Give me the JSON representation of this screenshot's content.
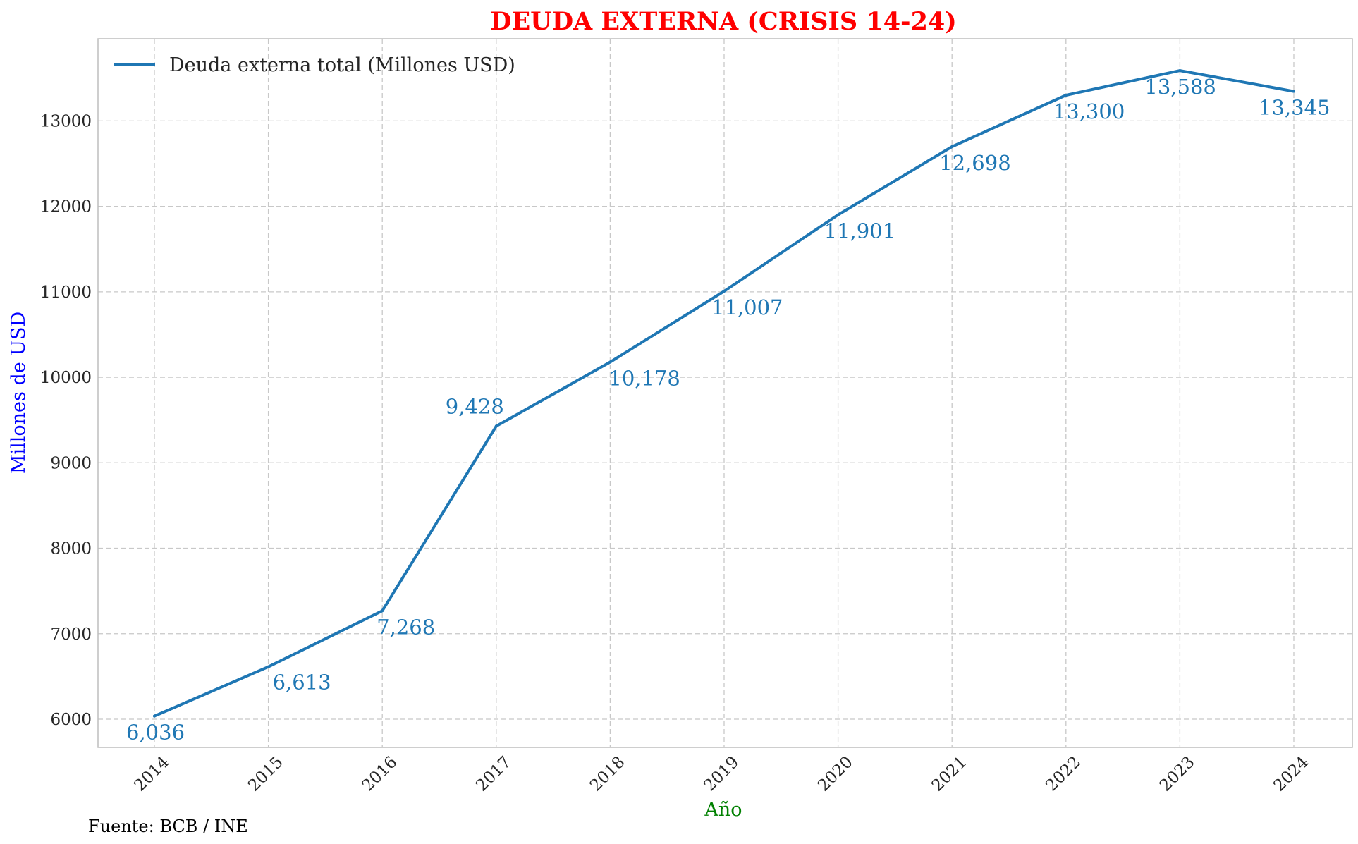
{
  "chart_data": {
    "type": "line",
    "title": "DEUDA EXTERNA (CRISIS 14-24)",
    "xlabel": "Año",
    "ylabel": "Millones de USD",
    "source": "Fuente: BCB / INE",
    "x": [
      "2014",
      "2015",
      "2016",
      "2017",
      "2018",
      "2019",
      "2020",
      "2021",
      "2022",
      "2023",
      "2024"
    ],
    "series": [
      {
        "name": "Deuda externa total (Millones USD)",
        "values": [
          6036,
          6613,
          7268,
          9428,
          10178,
          11007,
          11901,
          12698,
          13300,
          13588,
          13345
        ],
        "labels": [
          "6,036",
          "6,613",
          "7,268",
          "9,428",
          "10,178",
          "11,007",
          "11,901",
          "12,698",
          "13,300",
          "13,588",
          "13,345"
        ],
        "color": "#1f77b4"
      }
    ],
    "yticks": [
      "6000",
      "7000",
      "8000",
      "9000",
      "10000",
      "11000",
      "12000",
      "13000"
    ],
    "ylim": [
      5670,
      13960
    ],
    "grid": true,
    "legend_position": "top-left",
    "colors": {
      "title": "#ff0000",
      "xlabel": "#008000",
      "ylabel": "#0000ff",
      "line": "#1f77b4"
    }
  }
}
